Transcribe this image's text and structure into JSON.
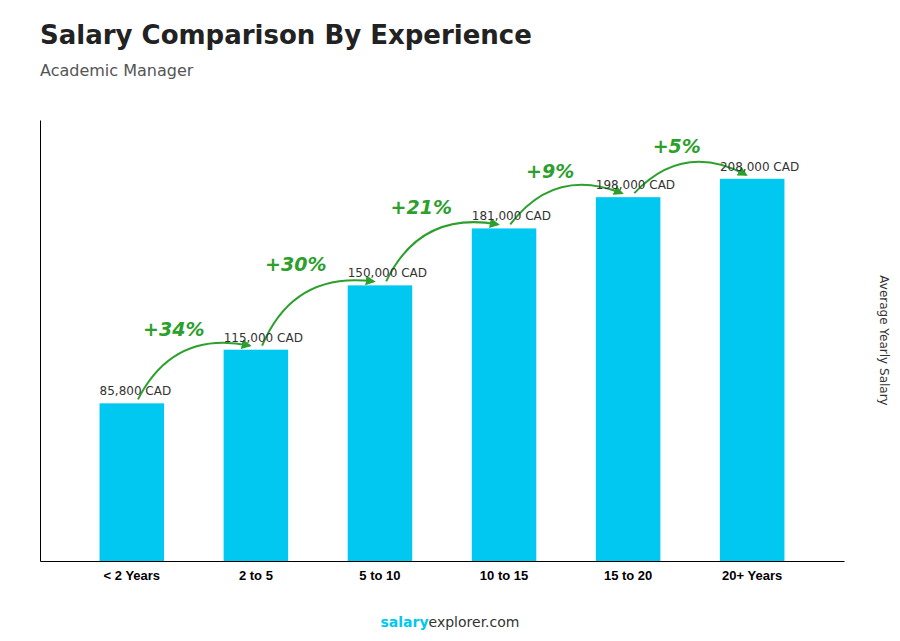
{
  "chart_data": {
    "type": "bar",
    "title": "Salary Comparison By Experience",
    "subtitle": "Academic Manager",
    "categories": [
      "< 2 Years",
      "2 to 5",
      "5 to 10",
      "10 to 15",
      "15 to 20",
      "20+ Years"
    ],
    "values": [
      85800,
      115000,
      150000,
      181000,
      198000,
      208000
    ],
    "value_labels": [
      "85,800 CAD",
      "115,000 CAD",
      "150,000 CAD",
      "181,000 CAD",
      "198,000 CAD",
      "208,000 CAD"
    ],
    "data_labels": true,
    "annotations": [
      "+34%",
      "+30%",
      "+21%",
      "+9%",
      "+5%"
    ],
    "ylabel": "Average Yearly Salary",
    "footer": [
      "salary",
      "explorer.com"
    ],
    "color": "#00c8f0",
    "ylim": [
      0,
      240000
    ],
    "tick_labels": "x"
  }
}
